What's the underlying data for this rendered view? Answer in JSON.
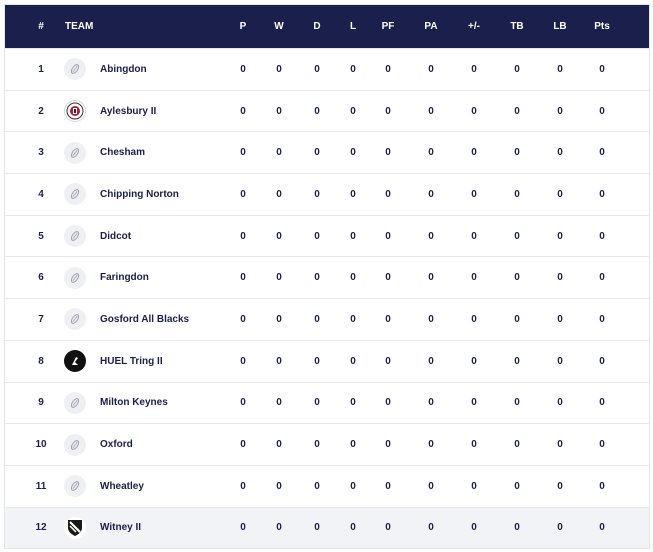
{
  "header": {
    "pos": "#",
    "team": "TEAM",
    "p": "P",
    "w": "W",
    "d": "D",
    "l": "L",
    "pf": "PF",
    "pa": "PA",
    "pm": "+/-",
    "tb": "TB",
    "lb": "LB",
    "pts": "Pts"
  },
  "rows": [
    {
      "pos": "1",
      "team": "Abingdon",
      "logo": "rugby-ball-icon",
      "p": "0",
      "w": "0",
      "d": "0",
      "l": "0",
      "pf": "0",
      "pa": "0",
      "pm": "0",
      "tb": "0",
      "lb": "0",
      "pts": "0"
    },
    {
      "pos": "2",
      "team": "Aylesbury II",
      "logo": "aylesbury-crest-icon",
      "p": "0",
      "w": "0",
      "d": "0",
      "l": "0",
      "pf": "0",
      "pa": "0",
      "pm": "0",
      "tb": "0",
      "lb": "0",
      "pts": "0"
    },
    {
      "pos": "3",
      "team": "Chesham",
      "logo": "rugby-ball-icon",
      "p": "0",
      "w": "0",
      "d": "0",
      "l": "0",
      "pf": "0",
      "pa": "0",
      "pm": "0",
      "tb": "0",
      "lb": "0",
      "pts": "0"
    },
    {
      "pos": "4",
      "team": "Chipping Norton",
      "logo": "rugby-ball-icon",
      "p": "0",
      "w": "0",
      "d": "0",
      "l": "0",
      "pf": "0",
      "pa": "0",
      "pm": "0",
      "tb": "0",
      "lb": "0",
      "pts": "0"
    },
    {
      "pos": "5",
      "team": "Didcot",
      "logo": "rugby-ball-icon",
      "p": "0",
      "w": "0",
      "d": "0",
      "l": "0",
      "pf": "0",
      "pa": "0",
      "pm": "0",
      "tb": "0",
      "lb": "0",
      "pts": "0"
    },
    {
      "pos": "6",
      "team": "Faringdon",
      "logo": "rugby-ball-icon",
      "p": "0",
      "w": "0",
      "d": "0",
      "l": "0",
      "pf": "0",
      "pa": "0",
      "pm": "0",
      "tb": "0",
      "lb": "0",
      "pts": "0"
    },
    {
      "pos": "7",
      "team": "Gosford All Blacks",
      "logo": "rugby-ball-icon",
      "p": "0",
      "w": "0",
      "d": "0",
      "l": "0",
      "pf": "0",
      "pa": "0",
      "pm": "0",
      "tb": "0",
      "lb": "0",
      "pts": "0"
    },
    {
      "pos": "8",
      "team": "HUEL Tring II",
      "logo": "tring-crest-icon",
      "p": "0",
      "w": "0",
      "d": "0",
      "l": "0",
      "pf": "0",
      "pa": "0",
      "pm": "0",
      "tb": "0",
      "lb": "0",
      "pts": "0"
    },
    {
      "pos": "9",
      "team": "Milton Keynes",
      "logo": "rugby-ball-icon",
      "p": "0",
      "w": "0",
      "d": "0",
      "l": "0",
      "pf": "0",
      "pa": "0",
      "pm": "0",
      "tb": "0",
      "lb": "0",
      "pts": "0"
    },
    {
      "pos": "10",
      "team": "Oxford",
      "logo": "rugby-ball-icon",
      "p": "0",
      "w": "0",
      "d": "0",
      "l": "0",
      "pf": "0",
      "pa": "0",
      "pm": "0",
      "tb": "0",
      "lb": "0",
      "pts": "0"
    },
    {
      "pos": "11",
      "team": "Wheatley",
      "logo": "rugby-ball-icon",
      "p": "0",
      "w": "0",
      "d": "0",
      "l": "0",
      "pf": "0",
      "pa": "0",
      "pm": "0",
      "tb": "0",
      "lb": "0",
      "pts": "0"
    },
    {
      "pos": "12",
      "team": "Witney II",
      "logo": "witney-shield-icon",
      "p": "0",
      "w": "0",
      "d": "0",
      "l": "0",
      "pf": "0",
      "pa": "0",
      "pm": "0",
      "tb": "0",
      "lb": "0",
      "pts": "0"
    }
  ],
  "colors": {
    "header_bg": "#1a1f4c",
    "text": "#1a1f4c",
    "last_row_bg": "#f2f3f7"
  }
}
